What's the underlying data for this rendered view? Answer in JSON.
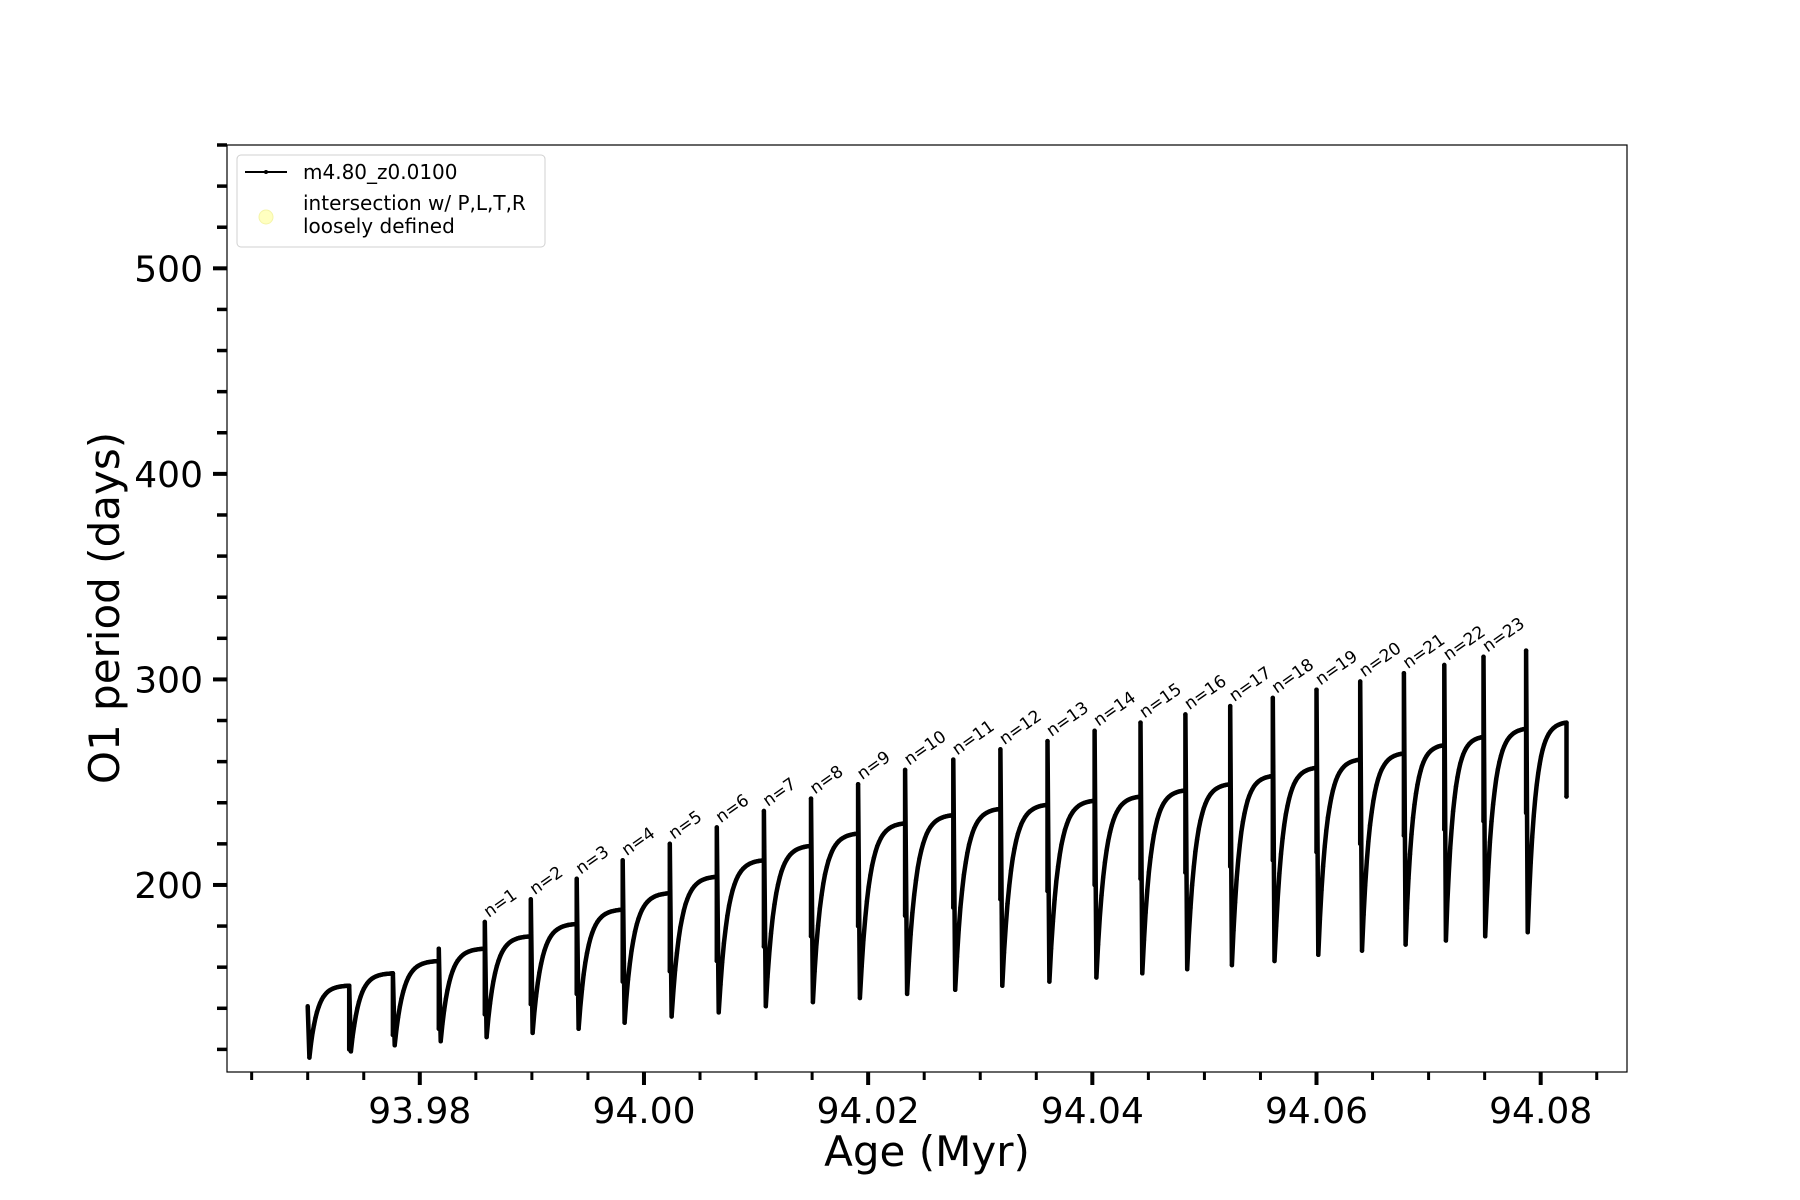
{
  "chart_data": {
    "type": "line",
    "title": "",
    "xlabel": "Age (Myr)",
    "ylabel": "O1 period (days)",
    "xlim": [
      93.9628,
      94.0877
    ],
    "ylim": [
      109,
      560
    ],
    "x_ticks": [
      93.98,
      94.0,
      94.02,
      94.04,
      94.06,
      94.08
    ],
    "x_tick_labels": [
      "93.98",
      "94.00",
      "94.02",
      "94.04",
      "94.06",
      "94.08"
    ],
    "y_ticks": [
      200,
      300,
      400,
      500
    ],
    "y_tick_labels": [
      "200",
      "300",
      "400",
      "500"
    ],
    "grid": false,
    "legend": {
      "placement": "top-left",
      "entries": [
        {
          "label": "m4.80_z0.0100",
          "marker": "line-dot",
          "color": "#000000"
        },
        {
          "label_lines": [
            "intersection w/ P,L,T,R",
            "loosely defined"
          ],
          "marker": "circle",
          "color": "#ffffc0"
        }
      ]
    },
    "series": [
      {
        "name": "m4.80_z0.0100",
        "color": "#000000",
        "cycles": [
          {
            "start": 93.97,
            "end": 93.9737,
            "peak": 141,
            "min": 116,
            "plateau": 151,
            "end_drop": 120
          },
          {
            "start": 93.9737,
            "end": 93.9776,
            "peak": 151,
            "min": 119,
            "plateau": 157,
            "end_drop": 127
          },
          {
            "start": 93.9776,
            "end": 93.9817,
            "peak": 157,
            "min": 122,
            "plateau": 163,
            "end_drop": 130
          },
          {
            "start": 93.9817,
            "end": 93.9858,
            "peak": 169,
            "min": 124,
            "plateau": 169,
            "end_drop": 137
          },
          {
            "start": 93.9858,
            "end": 93.9899,
            "peak": 182,
            "min": 126,
            "plateau": 175,
            "end_drop": 142
          },
          {
            "start": 93.9899,
            "end": 93.994,
            "peak": 193,
            "min": 128,
            "plateau": 181,
            "end_drop": 147
          },
          {
            "start": 93.994,
            "end": 93.9981,
            "peak": 203,
            "min": 130,
            "plateau": 188,
            "end_drop": 153
          },
          {
            "start": 93.9981,
            "end": 94.0023,
            "peak": 212,
            "min": 133,
            "plateau": 196,
            "end_drop": 158
          },
          {
            "start": 94.0023,
            "end": 94.0065,
            "peak": 220,
            "min": 136,
            "plateau": 204,
            "end_drop": 163
          },
          {
            "start": 94.0065,
            "end": 94.0107,
            "peak": 228,
            "min": 138,
            "plateau": 212,
            "end_drop": 170
          },
          {
            "start": 94.0107,
            "end": 94.0149,
            "peak": 236,
            "min": 141,
            "plateau": 219,
            "end_drop": 175
          },
          {
            "start": 94.0149,
            "end": 94.0191,
            "peak": 242,
            "min": 143,
            "plateau": 225,
            "end_drop": 180
          },
          {
            "start": 94.0191,
            "end": 94.0233,
            "peak": 249,
            "min": 145,
            "plateau": 230,
            "end_drop": 185
          },
          {
            "start": 94.0233,
            "end": 94.0276,
            "peak": 256,
            "min": 147,
            "plateau": 234,
            "end_drop": 189
          },
          {
            "start": 94.0276,
            "end": 94.0318,
            "peak": 261,
            "min": 149,
            "plateau": 237,
            "end_drop": 193
          },
          {
            "start": 94.0318,
            "end": 94.036,
            "peak": 266,
            "min": 151,
            "plateau": 239,
            "end_drop": 197
          },
          {
            "start": 94.036,
            "end": 94.0402,
            "peak": 270,
            "min": 153,
            "plateau": 241,
            "end_drop": 200
          },
          {
            "start": 94.0402,
            "end": 94.0443,
            "peak": 275,
            "min": 155,
            "plateau": 243,
            "end_drop": 203
          },
          {
            "start": 94.0443,
            "end": 94.0483,
            "peak": 279,
            "min": 157,
            "plateau": 246,
            "end_drop": 206
          },
          {
            "start": 94.0483,
            "end": 94.0523,
            "peak": 283,
            "min": 159,
            "plateau": 249,
            "end_drop": 209
          },
          {
            "start": 94.0523,
            "end": 94.0561,
            "peak": 287,
            "min": 161,
            "plateau": 253,
            "end_drop": 212
          },
          {
            "start": 94.0561,
            "end": 94.06,
            "peak": 291,
            "min": 163,
            "plateau": 257,
            "end_drop": 216
          },
          {
            "start": 94.06,
            "end": 94.0639,
            "peak": 295,
            "min": 166,
            "plateau": 261,
            "end_drop": 220
          },
          {
            "start": 94.0639,
            "end": 94.0678,
            "peak": 299,
            "min": 168,
            "plateau": 264,
            "end_drop": 224
          },
          {
            "start": 94.0678,
            "end": 94.0714,
            "peak": 303,
            "min": 171,
            "plateau": 268,
            "end_drop": 227
          },
          {
            "start": 94.0714,
            "end": 94.0749,
            "peak": 307,
            "min": 173,
            "plateau": 272,
            "end_drop": 231
          },
          {
            "start": 94.0749,
            "end": 94.0787,
            "peak": 311,
            "min": 175,
            "plateau": 276,
            "end_drop": 235
          },
          {
            "start": 94.0787,
            "end": 94.0823,
            "peak": 314,
            "min": 177,
            "plateau": 279,
            "end_drop": 243
          }
        ]
      }
    ],
    "annotations": [
      {
        "text": "n=1",
        "x": 93.9858,
        "y": 182
      },
      {
        "text": "n=2",
        "x": 93.9899,
        "y": 193
      },
      {
        "text": "n=3",
        "x": 93.994,
        "y": 203
      },
      {
        "text": "n=4",
        "x": 93.9981,
        "y": 212
      },
      {
        "text": "n=5",
        "x": 94.0023,
        "y": 220
      },
      {
        "text": "n=6",
        "x": 94.0065,
        "y": 228
      },
      {
        "text": "n=7",
        "x": 94.0107,
        "y": 236
      },
      {
        "text": "n=8",
        "x": 94.0149,
        "y": 242
      },
      {
        "text": "n=9",
        "x": 94.0191,
        "y": 249
      },
      {
        "text": "n=10",
        "x": 94.0233,
        "y": 256
      },
      {
        "text": "n=11",
        "x": 94.0276,
        "y": 261
      },
      {
        "text": "n=12",
        "x": 94.0318,
        "y": 266
      },
      {
        "text": "n=13",
        "x": 94.036,
        "y": 270
      },
      {
        "text": "n=14",
        "x": 94.0402,
        "y": 275
      },
      {
        "text": "n=15",
        "x": 94.0443,
        "y": 279
      },
      {
        "text": "n=16",
        "x": 94.0483,
        "y": 283
      },
      {
        "text": "n=17",
        "x": 94.0523,
        "y": 287
      },
      {
        "text": "n=18",
        "x": 94.0561,
        "y": 291
      },
      {
        "text": "n=19",
        "x": 94.06,
        "y": 295
      },
      {
        "text": "n=20",
        "x": 94.0639,
        "y": 299
      },
      {
        "text": "n=21",
        "x": 94.0678,
        "y": 303
      },
      {
        "text": "n=22",
        "x": 94.0714,
        "y": 307
      },
      {
        "text": "n=23",
        "x": 94.0749,
        "y": 311
      }
    ]
  }
}
